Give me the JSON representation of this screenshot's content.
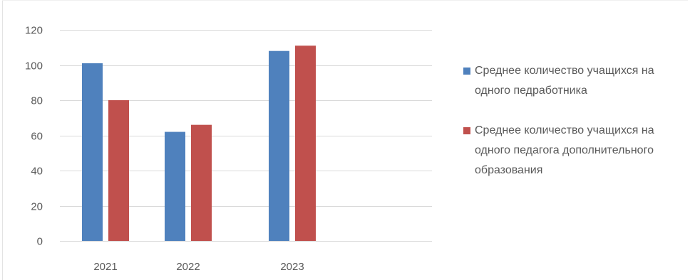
{
  "chart_data": {
    "type": "bar",
    "categories": [
      "2021",
      "2022",
      "2023"
    ],
    "series": [
      {
        "name": "Среднее количество учащихся на одного педработника",
        "color": "#4f81bd",
        "values": [
          101,
          62,
          108
        ]
      },
      {
        "name": "Среднее количество учащихся на одного педагога дополнительного образования",
        "color": "#c0504d",
        "values": [
          80,
          66,
          111
        ]
      }
    ],
    "yticks": [
      "0",
      "20",
      "40",
      "60",
      "80",
      "100",
      "120"
    ],
    "ylim": [
      0,
      120
    ],
    "grid": true,
    "legend_position": "right",
    "title": "",
    "xlabel": "",
    "ylabel": ""
  }
}
